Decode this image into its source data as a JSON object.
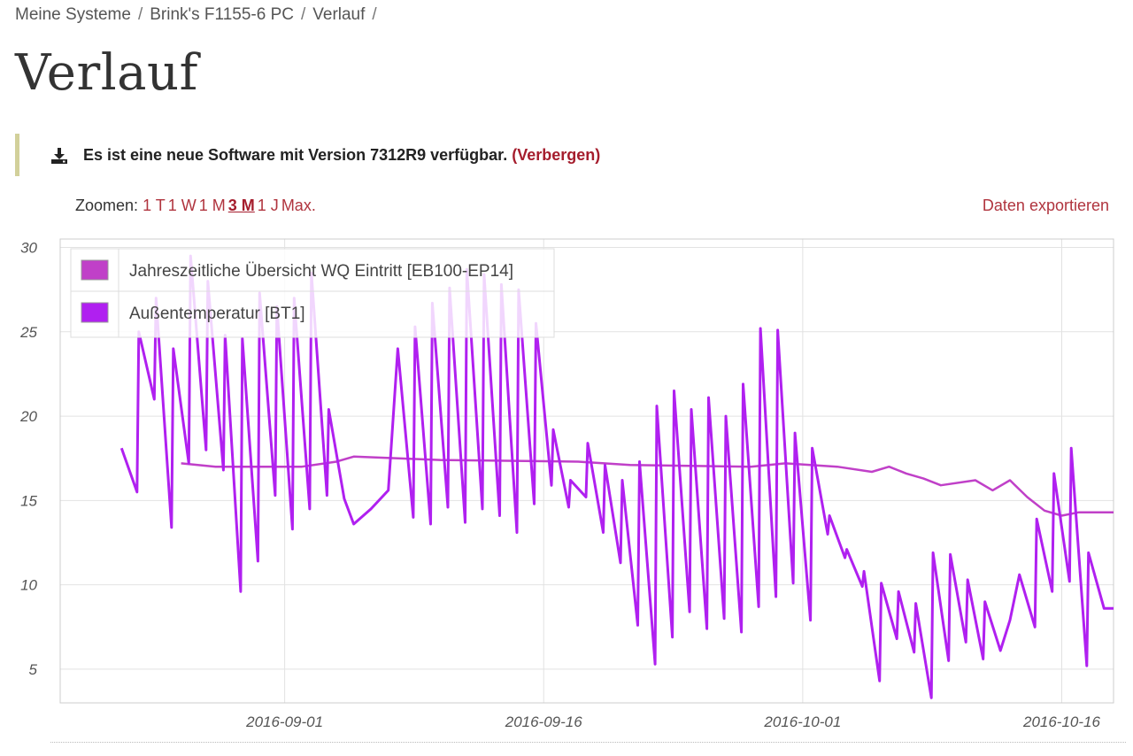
{
  "breadcrumb": {
    "items": [
      "Meine Systeme",
      "Brink's F1155-6 PC",
      "Verlauf"
    ],
    "separator": "/"
  },
  "page": {
    "title": "Verlauf"
  },
  "notice": {
    "icon": "download-icon",
    "message": "Es ist eine neue Software mit Version 7312R9 verfügbar.",
    "hide_label": "(Verbergen)"
  },
  "zoom": {
    "label": "Zoomen:",
    "options": [
      "1 T",
      "1 W",
      "1 M",
      "3 M",
      "1 J",
      "Max."
    ],
    "active": "3 M"
  },
  "export_label": "Daten exportieren",
  "colors": {
    "series1": "#c040c8",
    "series2": "#b020f0",
    "link": "#b0343e",
    "notice_border": "#d2d09a"
  },
  "chart_data": {
    "type": "line",
    "title": "",
    "xlabel": "",
    "ylabel": "",
    "x_ticks": [
      "2016-09-01",
      "2016-09-16",
      "2016-10-01",
      "2016-10-16"
    ],
    "xlim": [
      "2016-08-19",
      "2016-10-19"
    ],
    "y_ticks": [
      5,
      10,
      15,
      20,
      25,
      30
    ],
    "ylim": [
      3,
      30.5
    ],
    "grid": true,
    "legend_position": "top-left",
    "series": [
      {
        "name": "Jahreszeitliche Übersicht WQ Eintritt [EB100-EP14]",
        "points": [
          [
            "2016-08-26",
            17.2
          ],
          [
            "2016-08-28",
            17.0
          ],
          [
            "2016-09-02",
            17.0
          ],
          [
            "2016-09-04",
            17.3
          ],
          [
            "2016-09-05",
            17.6
          ],
          [
            "2016-09-10",
            17.4
          ],
          [
            "2016-09-18",
            17.3
          ],
          [
            "2016-09-21",
            17.1
          ],
          [
            "2016-09-28",
            17.0
          ],
          [
            "2016-09-30",
            17.2
          ],
          [
            "2016-10-03",
            17.0
          ],
          [
            "2016-10-05",
            16.7
          ],
          [
            "2016-10-06",
            17.0
          ],
          [
            "2016-10-07",
            16.6
          ],
          [
            "2016-10-08",
            16.3
          ],
          [
            "2016-10-09",
            15.9
          ],
          [
            "2016-10-11",
            16.2
          ],
          [
            "2016-10-12",
            15.6
          ],
          [
            "2016-10-13",
            16.2
          ],
          [
            "2016-10-14",
            15.2
          ],
          [
            "2016-10-15",
            14.4
          ],
          [
            "2016-10-16",
            14.1
          ],
          [
            "2016-10-17",
            14.3
          ],
          [
            "2016-10-19",
            14.3
          ]
        ]
      },
      {
        "name": "Außentemperatur [BT1]",
        "points": [
          [
            "2016-08-23",
            18.1
          ],
          [
            "2016-08-23",
            15.5
          ],
          [
            "2016-08-24",
            25.0
          ],
          [
            "2016-08-24",
            21.0
          ],
          [
            "2016-08-25",
            27.0
          ],
          [
            "2016-08-25",
            13.4
          ],
          [
            "2016-08-26",
            24.0
          ],
          [
            "2016-08-26",
            17.2
          ],
          [
            "2016-08-27",
            29.5
          ],
          [
            "2016-08-27",
            18.0
          ],
          [
            "2016-08-28",
            28.0
          ],
          [
            "2016-08-28",
            16.8
          ],
          [
            "2016-08-29",
            24.8
          ],
          [
            "2016-08-29",
            9.6
          ],
          [
            "2016-08-30",
            24.6
          ],
          [
            "2016-08-30",
            11.4
          ],
          [
            "2016-08-31",
            27.3
          ],
          [
            "2016-08-31",
            15.3
          ],
          [
            "2016-09-01",
            26.5
          ],
          [
            "2016-09-01",
            13.3
          ],
          [
            "2016-09-02",
            27.0
          ],
          [
            "2016-09-02",
            14.5
          ],
          [
            "2016-09-03",
            28.5
          ],
          [
            "2016-09-03",
            15.3
          ],
          [
            "2016-09-04",
            20.4
          ],
          [
            "2016-09-04",
            15.1
          ],
          [
            "2016-09-05",
            13.6
          ],
          [
            "2016-09-06",
            14.5
          ],
          [
            "2016-09-07",
            15.6
          ],
          [
            "2016-09-08",
            24.0
          ],
          [
            "2016-09-08",
            14.0
          ],
          [
            "2016-09-09",
            25.3
          ],
          [
            "2016-09-09",
            13.6
          ],
          [
            "2016-09-10",
            26.7
          ],
          [
            "2016-09-10",
            14.6
          ],
          [
            "2016-09-11",
            27.6
          ],
          [
            "2016-09-11",
            13.7
          ],
          [
            "2016-09-12",
            28.7
          ],
          [
            "2016-09-12",
            14.5
          ],
          [
            "2016-09-13",
            28.4
          ],
          [
            "2016-09-13",
            14.1
          ],
          [
            "2016-09-14",
            27.8
          ],
          [
            "2016-09-14",
            13.1
          ],
          [
            "2016-09-15",
            27.5
          ],
          [
            "2016-09-15",
            14.8
          ],
          [
            "2016-09-16",
            25.5
          ],
          [
            "2016-09-16",
            15.9
          ],
          [
            "2016-09-17",
            19.2
          ],
          [
            "2016-09-17",
            14.6
          ],
          [
            "2016-09-18",
            16.2
          ],
          [
            "2016-09-18",
            15.2
          ],
          [
            "2016-09-19",
            18.4
          ],
          [
            "2016-09-19",
            13.1
          ],
          [
            "2016-09-20",
            17.1
          ],
          [
            "2016-09-20",
            11.3
          ],
          [
            "2016-09-21",
            16.2
          ],
          [
            "2016-09-21",
            7.6
          ],
          [
            "2016-09-22",
            17.3
          ],
          [
            "2016-09-22",
            5.3
          ],
          [
            "2016-09-23",
            20.6
          ],
          [
            "2016-09-23",
            6.9
          ],
          [
            "2016-09-24",
            21.5
          ],
          [
            "2016-09-24",
            8.4
          ],
          [
            "2016-09-25",
            20.4
          ],
          [
            "2016-09-25",
            7.4
          ],
          [
            "2016-09-26",
            21.1
          ],
          [
            "2016-09-26",
            8.0
          ],
          [
            "2016-09-27",
            20.0
          ],
          [
            "2016-09-27",
            7.2
          ],
          [
            "2016-09-28",
            21.9
          ],
          [
            "2016-09-28",
            8.7
          ],
          [
            "2016-09-29",
            25.2
          ],
          [
            "2016-09-29",
            9.3
          ],
          [
            "2016-09-30",
            25.1
          ],
          [
            "2016-09-30",
            10.1
          ],
          [
            "2016-10-01",
            19.0
          ],
          [
            "2016-10-01",
            7.9
          ],
          [
            "2016-10-02",
            18.1
          ],
          [
            "2016-10-02",
            13.0
          ],
          [
            "2016-10-03",
            14.1
          ],
          [
            "2016-10-03",
            11.6
          ],
          [
            "2016-10-04",
            12.1
          ],
          [
            "2016-10-04",
            9.9
          ],
          [
            "2016-10-05",
            10.8
          ],
          [
            "2016-10-05",
            4.3
          ],
          [
            "2016-10-06",
            10.1
          ],
          [
            "2016-10-06",
            6.8
          ],
          [
            "2016-10-07",
            9.6
          ],
          [
            "2016-10-07",
            6.0
          ],
          [
            "2016-10-08",
            8.9
          ],
          [
            "2016-10-08",
            3.3
          ],
          [
            "2016-10-09",
            11.9
          ],
          [
            "2016-10-09",
            5.5
          ],
          [
            "2016-10-10",
            11.8
          ],
          [
            "2016-10-10",
            6.6
          ],
          [
            "2016-10-11",
            10.3
          ],
          [
            "2016-10-11",
            5.6
          ],
          [
            "2016-10-12",
            9.0
          ],
          [
            "2016-10-12",
            6.1
          ],
          [
            "2016-10-13",
            7.9
          ],
          [
            "2016-10-14",
            10.6
          ],
          [
            "2016-10-14",
            7.5
          ],
          [
            "2016-10-15",
            13.9
          ],
          [
            "2016-10-15",
            9.6
          ],
          [
            "2016-10-16",
            16.6
          ],
          [
            "2016-10-16",
            10.2
          ],
          [
            "2016-10-17",
            18.1
          ],
          [
            "2016-10-17",
            5.2
          ],
          [
            "2016-10-18",
            11.9
          ],
          [
            "2016-10-18",
            8.6
          ],
          [
            "2016-10-19",
            8.6
          ]
        ]
      }
    ]
  }
}
